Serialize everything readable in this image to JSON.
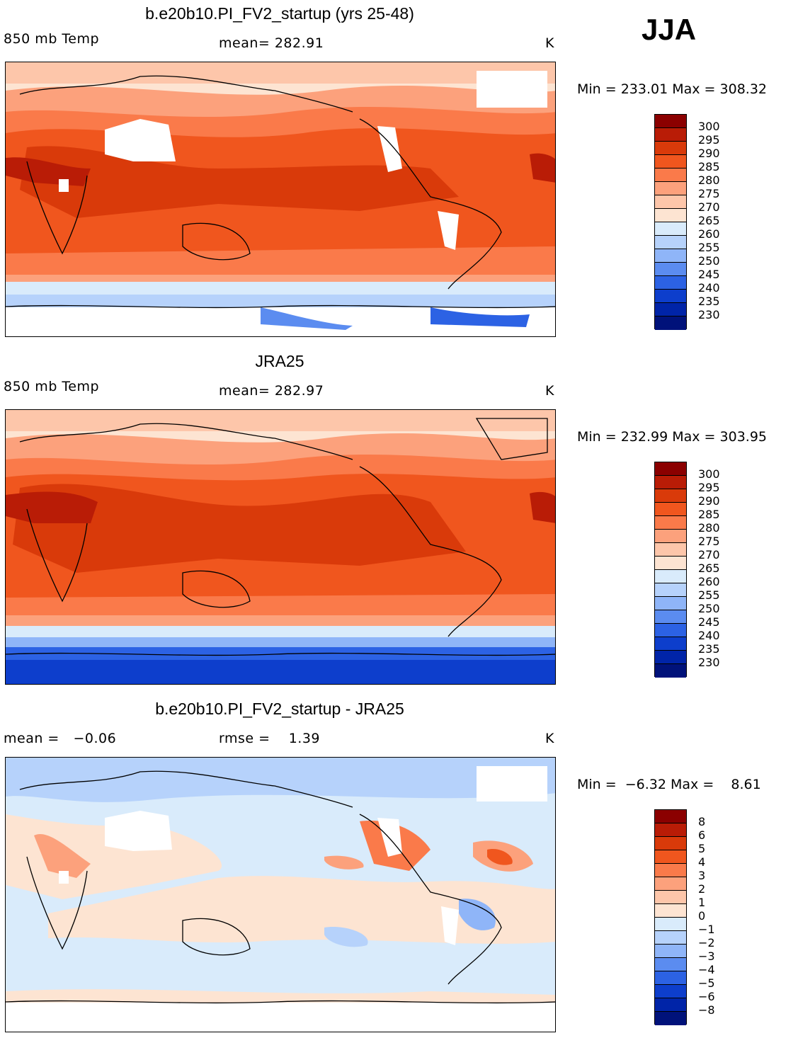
{
  "season": "JJA",
  "panels": [
    {
      "title": "b.e20b10.PI_FV2_startup (yrs 25-48)",
      "left_label": "850 mb Temp",
      "center_label": "mean= 282.91",
      "units": "K",
      "minmax": "Min = 233.01 Max = 308.32",
      "colorbar": {
        "levels": [
          "300",
          "295",
          "290",
          "285",
          "280",
          "275",
          "270",
          "265",
          "260",
          "255",
          "250",
          "245",
          "240",
          "235",
          "230"
        ],
        "colors": [
          "#8b0000",
          "#b91c06",
          "#d93a0a",
          "#f0561e",
          "#fa7a4a",
          "#fca17c",
          "#fdc6aa",
          "#fde4d2",
          "#d9ebfb",
          "#b6d2fb",
          "#8fb5f8",
          "#5b8cf0",
          "#2c62e4",
          "#0d3ecc",
          "#0024a8",
          "#00127a"
        ]
      }
    },
    {
      "title": "JRA25",
      "left_label": "850 mb Temp",
      "center_label": "mean= 282.97",
      "units": "K",
      "minmax": "Min = 232.99 Max = 303.95",
      "colorbar": {
        "levels": [
          "300",
          "295",
          "290",
          "285",
          "280",
          "275",
          "270",
          "265",
          "260",
          "255",
          "250",
          "245",
          "240",
          "235",
          "230"
        ],
        "colors": [
          "#8b0000",
          "#b91c06",
          "#d93a0a",
          "#f0561e",
          "#fa7a4a",
          "#fca17c",
          "#fdc6aa",
          "#fde4d2",
          "#d9ebfb",
          "#b6d2fb",
          "#8fb5f8",
          "#5b8cf0",
          "#2c62e4",
          "#0d3ecc",
          "#0024a8",
          "#00127a"
        ]
      }
    },
    {
      "title": "b.e20b10.PI_FV2_startup - JRA25",
      "left_label": "mean =   −0.06",
      "center_label": "rmse =    1.39",
      "units": "K",
      "minmax": "Min =  −6.32 Max =    8.61",
      "colorbar": {
        "levels": [
          "8",
          "6",
          "5",
          "4",
          "3",
          "2",
          "1",
          "0",
          "−1",
          "−2",
          "−3",
          "−4",
          "−5",
          "−6",
          "−8"
        ],
        "colors": [
          "#8b0000",
          "#b91c06",
          "#d93a0a",
          "#f0561e",
          "#fa7a4a",
          "#fca17c",
          "#fdc6aa",
          "#fde4d2",
          "#d9ebfb",
          "#b6d2fb",
          "#8fb5f8",
          "#5b8cf0",
          "#2c62e4",
          "#0d3ecc",
          "#0024a8",
          "#00127a"
        ]
      }
    }
  ]
}
